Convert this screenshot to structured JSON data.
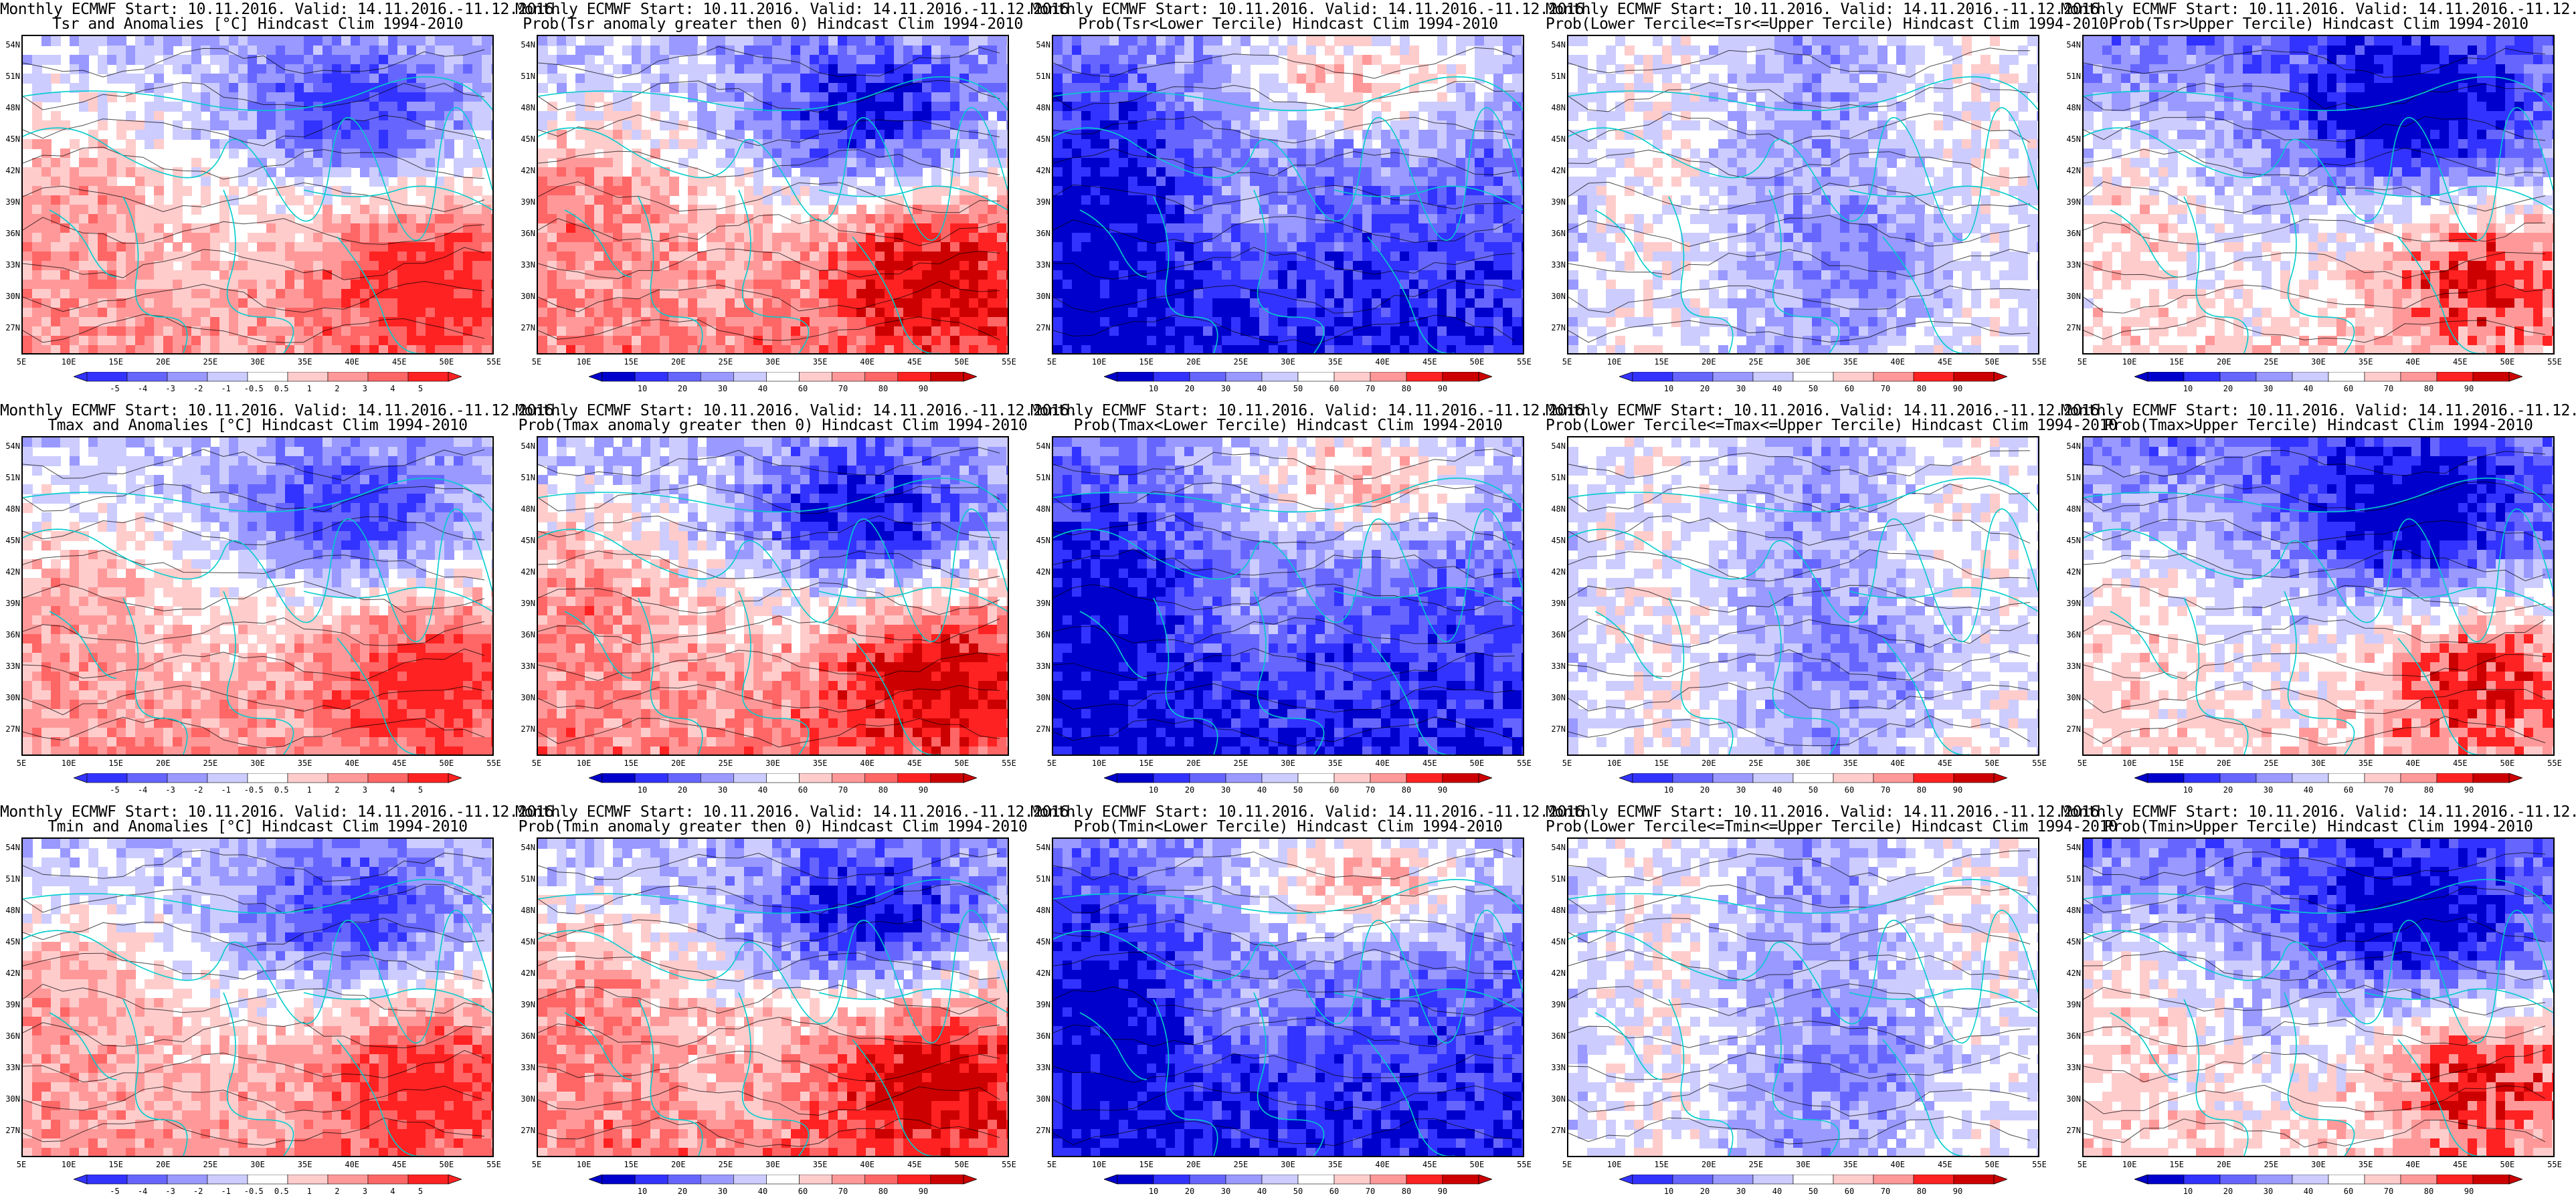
{
  "header_prefix": "Monthly ECMWF Start: 10.11.2016. Valid: 14.11.2016.-11.12.2016.",
  "panels": [
    {
      "title2": "Tsr and Anomalies [°C] Hindcast Clim 1994-2010",
      "scheme": "anom",
      "cbar": [
        "-5",
        "-4",
        "-3",
        "-2",
        "-1",
        "-0.5",
        "0.5",
        "1",
        "2",
        "3",
        "4",
        "5"
      ]
    },
    {
      "title2": "Prob(Tsr anomaly greater then 0) Hindcast Clim 1994-2010",
      "scheme": "probA",
      "cbar": [
        "10",
        "20",
        "30",
        "40",
        "60",
        "70",
        "80",
        "90"
      ]
    },
    {
      "title2": "Prob(Tsr<Lower Tercile) Hindcast Clim 1994-2010",
      "scheme": "lowT",
      "cbar": [
        "10",
        "20",
        "30",
        "40",
        "50",
        "60",
        "70",
        "80",
        "90"
      ]
    },
    {
      "title2": "Prob(Lower Tercile<=Tsr<=Upper Tercile) Hindcast Clim 1994-2010",
      "scheme": "midT",
      "cbar": [
        "10",
        "20",
        "30",
        "40",
        "50",
        "60",
        "70",
        "80",
        "90"
      ]
    },
    {
      "title2": "Prob(Tsr>Upper Tercile) Hindcast Clim 1994-2010",
      "scheme": "upT",
      "cbar": [
        "10",
        "20",
        "30",
        "40",
        "60",
        "70",
        "80",
        "90"
      ]
    },
    {
      "title2": "Tmax and Anomalies [°C] Hindcast Clim 1994-2010",
      "scheme": "anom",
      "cbar": [
        "-5",
        "-4",
        "-3",
        "-2",
        "-1",
        "-0.5",
        "0.5",
        "1",
        "2",
        "3",
        "4",
        "5"
      ]
    },
    {
      "title2": "Prob(Tmax anomaly greater then 0) Hindcast Clim 1994-2010",
      "scheme": "probA",
      "cbar": [
        "10",
        "20",
        "30",
        "40",
        "60",
        "70",
        "80",
        "90"
      ]
    },
    {
      "title2": "Prob(Tmax<Lower Tercile) Hindcast Clim 1994-2010",
      "scheme": "lowT",
      "cbar": [
        "10",
        "20",
        "30",
        "40",
        "50",
        "60",
        "70",
        "80",
        "90"
      ]
    },
    {
      "title2": "Prob(Lower Tercile<=Tmax<=Upper Tercile) Hindcast Clim 1994-2010",
      "scheme": "midT",
      "cbar": [
        "10",
        "20",
        "30",
        "40",
        "50",
        "60",
        "70",
        "80",
        "90"
      ]
    },
    {
      "title2": "Prob(Tmax>Upper Tercile) Hindcast Clim 1994-2010",
      "scheme": "upT",
      "cbar": [
        "10",
        "20",
        "30",
        "40",
        "60",
        "70",
        "80",
        "90"
      ]
    },
    {
      "title2": "Tmin and Anomalies [°C] Hindcast Clim 1994-2010",
      "scheme": "anom",
      "cbar": [
        "-5",
        "-4",
        "-3",
        "-2",
        "-1",
        "-0.5",
        "0.5",
        "1",
        "2",
        "3",
        "4",
        "5"
      ]
    },
    {
      "title2": "Prob(Tmin anomaly greater then 0) Hindcast Clim 1994-2010",
      "scheme": "probA",
      "cbar": [
        "10",
        "20",
        "30",
        "40",
        "60",
        "70",
        "80",
        "90"
      ]
    },
    {
      "title2": "Prob(Tmin<Lower Tercile) Hindcast Clim 1994-2010",
      "scheme": "lowT",
      "cbar": [
        "10",
        "20",
        "30",
        "40",
        "50",
        "60",
        "70",
        "80",
        "90"
      ]
    },
    {
      "title2": "Prob(Lower Tercile<=Tmin<=Upper Tercile) Hindcast Clim 1994-2010",
      "scheme": "midT",
      "cbar": [
        "10",
        "20",
        "30",
        "40",
        "50",
        "60",
        "70",
        "80",
        "90"
      ]
    },
    {
      "title2": "Prob(Tmin>Upper Tercile) Hindcast Clim 1994-2010",
      "scheme": "upT",
      "cbar": [
        "10",
        "20",
        "30",
        "40",
        "60",
        "70",
        "80",
        "90"
      ]
    }
  ],
  "lat_labels": [
    "54N",
    "51N",
    "48N",
    "45N",
    "42N",
    "39N",
    "36N",
    "33N",
    "30N",
    "27N"
  ],
  "lon_labels": [
    "5E",
    "10E",
    "15E",
    "20E",
    "25E",
    "30E",
    "35E",
    "40E",
    "45E",
    "50E",
    "55E"
  ],
  "colors": {
    "deep_blue": "#0000cc",
    "blue": "#3333ff",
    "mid_blue": "#6666ff",
    "light_blue": "#9999ff",
    "pale_blue": "#ccccff",
    "white": "#ffffff",
    "pale_red": "#ffcccc",
    "light_red": "#ff9999",
    "mid_red": "#ff6666",
    "red": "#ff2222",
    "deep_red": "#cc0000",
    "coast": "#00cccc",
    "contour": "#000000"
  }
}
